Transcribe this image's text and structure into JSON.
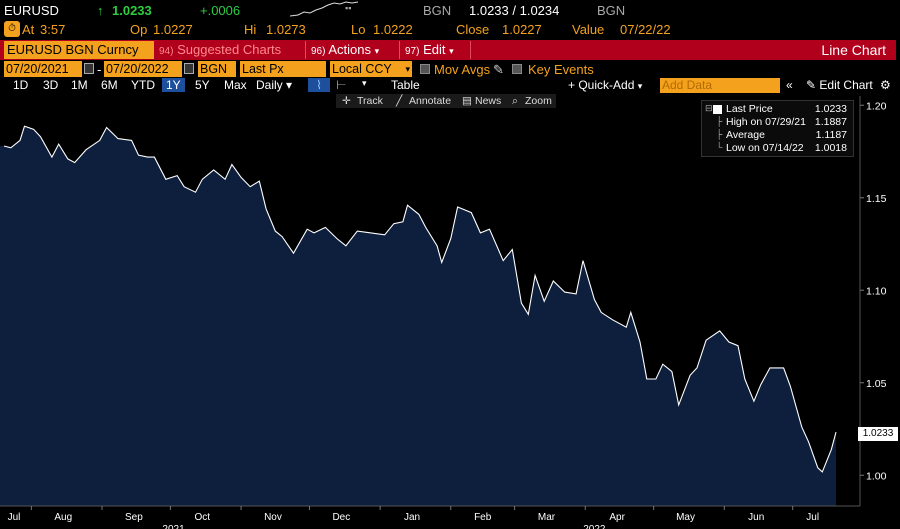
{
  "header": {
    "ticker": "EURUSD",
    "arrow": "↑",
    "last": "1.0233",
    "change": "+.0006",
    "source": "BGN",
    "bid_ask": "1.0233 / 1.0234",
    "source2": "BGN"
  },
  "quote": {
    "at_label": "At",
    "time": "3:57",
    "op_label": "Op",
    "op": "1.0227",
    "hi_label": "Hi",
    "hi": "1.0273",
    "lo_label": "Lo",
    "lo": "1.0222",
    "close_label": "Close",
    "close": "1.0227",
    "value_label": "Value",
    "value_date": "07/22/22"
  },
  "titlebar": {
    "security": "EURUSD BGN Curncy",
    "suggested_num": "94)",
    "suggested": "Suggested Charts",
    "actions_num": "96)",
    "actions": "Actions",
    "edit_num": "97)",
    "edit": "Edit",
    "chart_type": "Line Chart"
  },
  "controls": {
    "start_date": "07/20/2021",
    "end_date": "07/20/2022",
    "source": "BGN",
    "field": "Last Px",
    "currency": "Local CCY",
    "mov_avgs": "Mov Avgs",
    "key_events": "Key Events"
  },
  "ranges": {
    "items": [
      "1D",
      "3D",
      "1M",
      "6M",
      "YTD",
      "1Y",
      "5Y",
      "Max"
    ],
    "active": "1Y",
    "frequency": "Daily",
    "table": "Table",
    "quick_add": "+ Quick-Add",
    "add_data_placeholder": "Add Data",
    "edit_chart": "Edit Chart"
  },
  "tools": {
    "track": "Track",
    "annotate": "Annotate",
    "news": "News",
    "zoom": "Zoom"
  },
  "legend": {
    "last_price_label": "Last Price",
    "last_price": "1.0233",
    "high_label": "High on 07/29/21",
    "high": "1.1887",
    "avg_label": "Average",
    "avg": "1.1187",
    "low_label": "Low on 07/14/22",
    "low": "1.0018"
  },
  "last_value_tag": "1.0233",
  "colors": {
    "accent_orange": "#f4a21d",
    "title_red": "#b1001c",
    "area_fill": "#0d1f3c",
    "line": "#ffffff",
    "up_green": "#2ecc40",
    "active_blue": "#1d4f9c"
  },
  "chart_data": {
    "type": "area",
    "title": "EURUSD BGN Curncy",
    "ylim": [
      0.985,
      1.205
    ],
    "yticks": [
      1.0,
      1.05,
      1.1,
      1.15,
      1.2
    ],
    "ytick_labels": [
      "1.00",
      "1.05",
      "1.10",
      "1.15",
      "1.20"
    ],
    "x_months": [
      "Jul",
      "Aug",
      "Sep",
      "Oct",
      "Nov",
      "Dec",
      "Jan",
      "Feb",
      "Mar",
      "Apr",
      "May",
      "Jun",
      "Jul"
    ],
    "x_years": [
      "2021",
      "2022"
    ],
    "series": [
      {
        "points": [
          [
            "2021-07-20",
            1.178
          ],
          [
            "2021-07-23",
            1.177
          ],
          [
            "2021-07-27",
            1.181
          ],
          [
            "2021-07-29",
            1.1887
          ],
          [
            "2021-08-02",
            1.187
          ],
          [
            "2021-08-05",
            1.183
          ],
          [
            "2021-08-10",
            1.172
          ],
          [
            "2021-08-13",
            1.179
          ],
          [
            "2021-08-17",
            1.171
          ],
          [
            "2021-08-20",
            1.169
          ],
          [
            "2021-08-25",
            1.176
          ],
          [
            "2021-08-31",
            1.181
          ],
          [
            "2021-09-03",
            1.188
          ],
          [
            "2021-09-08",
            1.182
          ],
          [
            "2021-09-14",
            1.181
          ],
          [
            "2021-09-17",
            1.173
          ],
          [
            "2021-09-21",
            1.172
          ],
          [
            "2021-09-24",
            1.172
          ],
          [
            "2021-09-29",
            1.16
          ],
          [
            "2021-10-04",
            1.162
          ],
          [
            "2021-10-07",
            1.156
          ],
          [
            "2021-10-12",
            1.153
          ],
          [
            "2021-10-15",
            1.16
          ],
          [
            "2021-10-20",
            1.165
          ],
          [
            "2021-10-25",
            1.16
          ],
          [
            "2021-10-28",
            1.168
          ],
          [
            "2021-11-01",
            1.161
          ],
          [
            "2021-11-05",
            1.156
          ],
          [
            "2021-11-09",
            1.159
          ],
          [
            "2021-11-12",
            1.144
          ],
          [
            "2021-11-16",
            1.132
          ],
          [
            "2021-11-19",
            1.129
          ],
          [
            "2021-11-24",
            1.12
          ],
          [
            "2021-11-30",
            1.133
          ],
          [
            "2021-12-03",
            1.131
          ],
          [
            "2021-12-08",
            1.134
          ],
          [
            "2021-12-13",
            1.128
          ],
          [
            "2021-12-17",
            1.124
          ],
          [
            "2021-12-22",
            1.132
          ],
          [
            "2021-12-28",
            1.131
          ],
          [
            "2022-01-03",
            1.13
          ],
          [
            "2022-01-07",
            1.136
          ],
          [
            "2022-01-11",
            1.137
          ],
          [
            "2022-01-13",
            1.146
          ],
          [
            "2022-01-18",
            1.141
          ],
          [
            "2022-01-21",
            1.134
          ],
          [
            "2022-01-26",
            1.124
          ],
          [
            "2022-01-28",
            1.115
          ],
          [
            "2022-02-01",
            1.128
          ],
          [
            "2022-02-04",
            1.145
          ],
          [
            "2022-02-10",
            1.142
          ],
          [
            "2022-02-14",
            1.131
          ],
          [
            "2022-02-18",
            1.133
          ],
          [
            "2022-02-24",
            1.116
          ],
          [
            "2022-02-28",
            1.122
          ],
          [
            "2022-03-04",
            1.093
          ],
          [
            "2022-03-07",
            1.087
          ],
          [
            "2022-03-10",
            1.108
          ],
          [
            "2022-03-14",
            1.094
          ],
          [
            "2022-03-18",
            1.105
          ],
          [
            "2022-03-23",
            1.099
          ],
          [
            "2022-03-28",
            1.098
          ],
          [
            "2022-03-31",
            1.116
          ],
          [
            "2022-04-05",
            1.095
          ],
          [
            "2022-04-08",
            1.088
          ],
          [
            "2022-04-13",
            1.084
          ],
          [
            "2022-04-19",
            1.08
          ],
          [
            "2022-04-21",
            1.088
          ],
          [
            "2022-04-25",
            1.072
          ],
          [
            "2022-04-28",
            1.052
          ],
          [
            "2022-05-02",
            1.052
          ],
          [
            "2022-05-05",
            1.06
          ],
          [
            "2022-05-09",
            1.056
          ],
          [
            "2022-05-12",
            1.038
          ],
          [
            "2022-05-17",
            1.054
          ],
          [
            "2022-05-20",
            1.058
          ],
          [
            "2022-05-24",
            1.073
          ],
          [
            "2022-05-30",
            1.078
          ],
          [
            "2022-06-03",
            1.072
          ],
          [
            "2022-06-07",
            1.07
          ],
          [
            "2022-06-10",
            1.052
          ],
          [
            "2022-06-14",
            1.04
          ],
          [
            "2022-06-17",
            1.049
          ],
          [
            "2022-06-21",
            1.058
          ],
          [
            "2022-06-27",
            1.058
          ],
          [
            "2022-06-30",
            1.048
          ],
          [
            "2022-07-05",
            1.026
          ],
          [
            "2022-07-08",
            1.018
          ],
          [
            "2022-07-12",
            1.004
          ],
          [
            "2022-07-14",
            1.0018
          ],
          [
            "2022-07-18",
            1.014
          ],
          [
            "2022-07-20",
            1.0233
          ]
        ]
      }
    ]
  }
}
